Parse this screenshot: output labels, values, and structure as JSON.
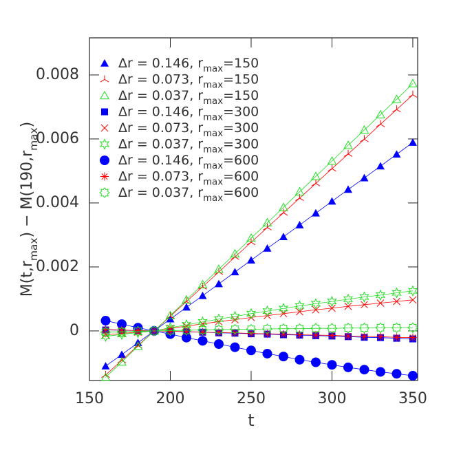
{
  "chart_data": {
    "type": "line",
    "x_label": "t",
    "y_label": "M(t,r_max) − M(190,r_max)",
    "x": [
      160,
      170,
      180,
      190,
      200,
      210,
      220,
      230,
      240,
      250,
      260,
      270,
      280,
      290,
      300,
      310,
      320,
      330,
      340,
      350
    ],
    "xlim": [
      150,
      353
    ],
    "xticks": [
      150,
      200,
      250,
      300,
      350
    ],
    "ylim": [
      -0.00155,
      0.00916
    ],
    "yticks": [
      0,
      0.002,
      0.004,
      0.006,
      0.008
    ],
    "series": [
      {
        "name": "Δr = 0.146, r_max=150",
        "color": "#0000ff",
        "marker": "triangle",
        "values": [
          -0.0011,
          -0.00074,
          -0.00037,
          0,
          0.00037,
          0.00074,
          0.0011,
          0.00147,
          0.00184,
          0.00221,
          0.00258,
          0.00294,
          0.00331,
          0.00368,
          0.00405,
          0.00442,
          0.00478,
          0.00515,
          0.00552,
          0.00589
        ]
      },
      {
        "name": "Δr = 0.073, r_max=150",
        "color": "#ff0000",
        "marker": "tri",
        "values": [
          -0.00138,
          -0.00092,
          -0.00046,
          0,
          0.00046,
          0.00092,
          0.00138,
          0.00184,
          0.00231,
          0.00277,
          0.00323,
          0.00369,
          0.00415,
          0.00461,
          0.00507,
          0.00553,
          0.00599,
          0.00646,
          0.00692,
          0.00738
        ]
      },
      {
        "name": "Δr = 0.037, r_max=150",
        "color": "#22dd22",
        "marker": "triangle-open",
        "values": [
          -0.00145,
          -0.00097,
          -0.00048,
          0,
          0.00048,
          0.00097,
          0.00145,
          0.00193,
          0.00241,
          0.0029,
          0.00338,
          0.00386,
          0.00435,
          0.00483,
          0.00531,
          0.0058,
          0.00628,
          0.00676,
          0.00724,
          0.00773
        ]
      },
      {
        "name": "Δr = 0.146, r_max=300",
        "color": "#0000ff",
        "marker": "square",
        "values": [
          3e-05,
          2e-05,
          1e-05,
          0,
          -1e-05,
          -3e-05,
          -4e-05,
          -6e-05,
          -7e-05,
          -9e-05,
          -0.0001,
          -0.00012,
          -0.00013,
          -0.00015,
          -0.00016,
          -0.00018,
          -0.0002,
          -0.00021,
          -0.00023,
          -0.00025
        ]
      },
      {
        "name": "Δr = 0.073, r_max=300",
        "color": "#ff0000",
        "marker": "x",
        "values": [
          -0.00012,
          -8e-05,
          -4e-05,
          0,
          8e-05,
          0.00015,
          0.00022,
          0.00029,
          0.00035,
          0.00042,
          0.00048,
          0.00054,
          0.0006,
          0.00066,
          0.00071,
          0.00077,
          0.00082,
          0.00087,
          0.00092,
          0.00097
        ]
      },
      {
        "name": "Δr = 0.037, r_max=300",
        "color": "#22dd22",
        "marker": "star-open",
        "values": [
          -0.00017,
          -0.00011,
          -5e-05,
          0,
          0.0001,
          0.00019,
          0.00028,
          0.00037,
          0.00045,
          0.00054,
          0.00062,
          0.0007,
          0.00078,
          0.00085,
          0.00092,
          0.00099,
          0.00106,
          0.00112,
          0.00119,
          0.00125
        ]
      },
      {
        "name": "Δr = 0.146, r_max=600",
        "color": "#0000ff",
        "marker": "circle",
        "values": [
          0.00032,
          0.00021,
          0.0001,
          0,
          -0.0001,
          -0.00021,
          -0.00031,
          -0.00041,
          -0.00051,
          -0.00061,
          -0.00071,
          -0.0008,
          -0.0009,
          -0.00098,
          -0.00106,
          -0.00114,
          -0.00121,
          -0.00128,
          -0.00134,
          -0.0014
        ]
      },
      {
        "name": "Δr = 0.073, r_max=600",
        "color": "#ff0000",
        "marker": "asterisk",
        "values": [
          4e-05,
          3e-05,
          1e-05,
          0,
          -1e-05,
          -2e-05,
          -4e-05,
          -5e-05,
          -6e-05,
          -8e-05,
          -9e-05,
          -0.0001,
          -0.00012,
          -0.00013,
          -0.00014,
          -0.00016,
          -0.00017,
          -0.00018,
          -0.0002,
          -0.00021
        ]
      },
      {
        "name": "Δr = 0.037, r_max=600",
        "color": "#22dd22",
        "marker": "burst-open",
        "values": [
          -4e-05,
          -3e-05,
          -1e-05,
          0,
          1e-05,
          2e-05,
          3e-05,
          4e-05,
          5e-05,
          5e-05,
          6e-05,
          7e-05,
          7e-05,
          8e-05,
          8e-05,
          9e-05,
          9e-05,
          0.0001,
          0.0001,
          0.0001
        ]
      }
    ]
  }
}
